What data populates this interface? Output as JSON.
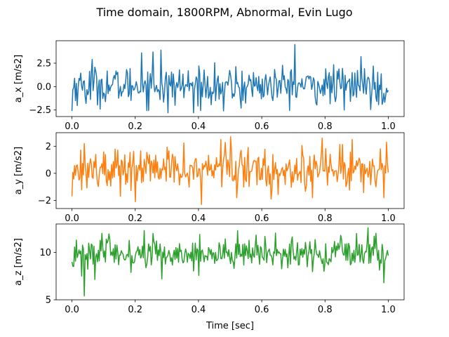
{
  "figure": {
    "title": "Time domain, 1800RPM, Abnormal, Evin Lugo",
    "xlabel": "Time [sec]"
  },
  "chart_data": [
    {
      "type": "line",
      "ylabel": "a_x [m/s2]",
      "xlim": [
        -0.05,
        1.05
      ],
      "ylim": [
        -3.2,
        4.9
      ],
      "xticks": [
        "0.0",
        "0.2",
        "0.4",
        "0.6",
        "0.8",
        "1.0"
      ],
      "yticks": [
        -2.5,
        0.0,
        2.5
      ],
      "ytick_labels": [
        "−2.5",
        "0.0",
        "2.5"
      ],
      "show_xtick_labels": true,
      "color": "#1f77b4",
      "series": [
        {
          "x_start": 0.0,
          "x_end": 1.0,
          "n_points": 360,
          "mean": 0.1,
          "std": 1.0,
          "min": -2.9,
          "max": 4.5,
          "peaks": [
            [
              0.0,
              -2.6
            ],
            [
              0.045,
              -1.8
            ],
            [
              0.065,
              2.9
            ],
            [
              0.22,
              3.6
            ],
            [
              0.255,
              3.7
            ],
            [
              0.28,
              3.9
            ],
            [
              0.305,
              -2.8
            ],
            [
              0.385,
              -2.8
            ],
            [
              0.48,
              -2.6
            ],
            [
              0.535,
              -2.3
            ],
            [
              0.705,
              4.5
            ],
            [
              0.86,
              -2.5
            ],
            [
              0.915,
              3.2
            ],
            [
              0.98,
              -1.9
            ]
          ]
        }
      ]
    },
    {
      "type": "line",
      "ylabel": "a_y [m/s2]",
      "xlim": [
        -0.05,
        1.05
      ],
      "ylim": [
        -2.6,
        3.0
      ],
      "xticks": [
        "0.0",
        "0.2",
        "0.4",
        "0.6",
        "0.8",
        "1.0"
      ],
      "yticks": [
        -2,
        0,
        2
      ],
      "ytick_labels": [
        "−2",
        "0",
        "2"
      ],
      "show_xtick_labels": true,
      "color": "#ff7f0e",
      "series": [
        {
          "x_start": 0.0,
          "x_end": 1.0,
          "n_points": 360,
          "mean": 0.3,
          "std": 0.75,
          "min": -2.3,
          "max": 2.7,
          "peaks": [
            [
              0.0,
              -1.7
            ],
            [
              0.04,
              2.2
            ],
            [
              0.2,
              -2.1
            ],
            [
              0.41,
              -2.3
            ],
            [
              0.47,
              2.5
            ],
            [
              0.5,
              2.7
            ],
            [
              0.52,
              -1.8
            ],
            [
              0.63,
              -1.9
            ],
            [
              0.76,
              -1.8
            ],
            [
              0.79,
              2.6
            ],
            [
              0.885,
              2.5
            ],
            [
              0.985,
              -1.8
            ],
            [
              0.995,
              2.3
            ]
          ]
        }
      ]
    },
    {
      "type": "line",
      "ylabel": "a_z [m/s2]",
      "xlim": [
        -0.05,
        1.05
      ],
      "ylim": [
        5.0,
        13.0
      ],
      "xticks": [
        "0.0",
        "0.2",
        "0.4",
        "0.6",
        "0.8",
        "1.0"
      ],
      "yticks": [
        5,
        10
      ],
      "ytick_labels": [
        "5",
        "10"
      ],
      "show_xtick_labels": true,
      "color": "#2ca02c",
      "series": [
        {
          "x_start": 0.0,
          "x_end": 1.0,
          "n_points": 360,
          "mean": 9.8,
          "std": 0.85,
          "min": 5.4,
          "max": 12.6,
          "peaks": [
            [
              0.0,
              9.0
            ],
            [
              0.015,
              11.3
            ],
            [
              0.03,
              7.5
            ],
            [
              0.04,
              5.4
            ],
            [
              0.11,
              11.4
            ],
            [
              0.255,
              12.0
            ],
            [
              0.285,
              7.2
            ],
            [
              0.405,
              11.9
            ],
            [
              0.525,
              12.3
            ],
            [
              0.85,
              11.8
            ],
            [
              0.9,
              12.0
            ],
            [
              0.935,
              12.6
            ],
            [
              0.985,
              6.8
            ]
          ]
        }
      ]
    }
  ]
}
